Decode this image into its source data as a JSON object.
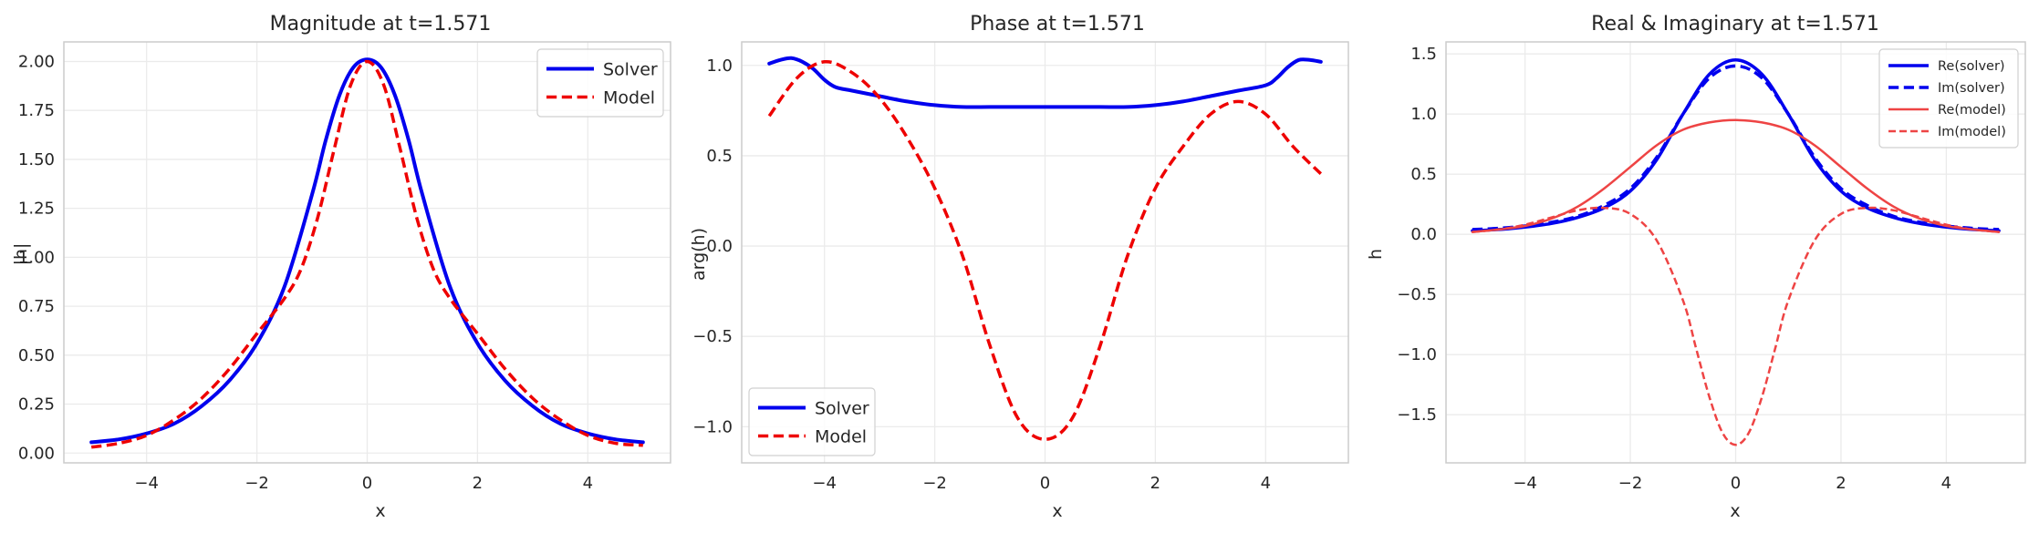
{
  "chart_data": [
    {
      "type": "line",
      "title": "Magnitude at t=1.571",
      "xlabel": "x",
      "ylabel": "|h|",
      "xlim": [
        -5.5,
        5.5
      ],
      "ylim": [
        -0.05,
        2.1
      ],
      "xticks": [
        -4,
        -2,
        0,
        2,
        4
      ],
      "xtick_labels": [
        "−4",
        "−2",
        "0",
        "2",
        "4"
      ],
      "yticks": [
        0.0,
        0.25,
        0.5,
        0.75,
        1.0,
        1.25,
        1.5,
        1.75,
        2.0
      ],
      "ytick_labels": [
        "0.00",
        "0.25",
        "0.50",
        "0.75",
        "1.00",
        "1.25",
        "1.50",
        "1.75",
        "2.00"
      ],
      "grid": true,
      "legend": "upper right",
      "series": [
        {
          "name": "Solver",
          "color": "#0000ee",
          "style": "solid",
          "width": 4,
          "x": [
            -5,
            -4.5,
            -4,
            -3.5,
            -3,
            -2.5,
            -2,
            -1.5,
            -1,
            -0.75,
            -0.5,
            -0.25,
            0,
            0.25,
            0.5,
            0.75,
            1,
            1.5,
            2,
            2.5,
            3,
            3.5,
            4,
            4.5,
            5
          ],
          "y": [
            0.055,
            0.07,
            0.1,
            0.15,
            0.24,
            0.37,
            0.56,
            0.85,
            1.32,
            1.6,
            1.83,
            1.97,
            2.01,
            1.97,
            1.83,
            1.6,
            1.32,
            0.85,
            0.56,
            0.37,
            0.24,
            0.15,
            0.1,
            0.07,
            0.055
          ]
        },
        {
          "name": "Model",
          "color": "#ee0000",
          "style": "dashed",
          "width": 3.5,
          "x": [
            -5,
            -4.5,
            -4,
            -3.5,
            -3,
            -2.5,
            -2,
            -1.5,
            -1.2,
            -0.9,
            -0.6,
            -0.3,
            0,
            0.3,
            0.6,
            0.9,
            1.2,
            1.5,
            2,
            2.5,
            3,
            3.5,
            4,
            4.5,
            5
          ],
          "y": [
            0.03,
            0.05,
            0.09,
            0.17,
            0.28,
            0.43,
            0.61,
            0.79,
            0.94,
            1.2,
            1.55,
            1.88,
            2.0,
            1.88,
            1.55,
            1.2,
            0.94,
            0.79,
            0.61,
            0.43,
            0.28,
            0.17,
            0.09,
            0.05,
            0.04
          ]
        }
      ]
    },
    {
      "type": "line",
      "title": "Phase at t=1.571",
      "xlabel": "x",
      "ylabel": "arg(h)",
      "xlim": [
        -5.5,
        5.5
      ],
      "ylim": [
        -1.2,
        1.13
      ],
      "xticks": [
        -4,
        -2,
        0,
        2,
        4
      ],
      "xtick_labels": [
        "−4",
        "−2",
        "0",
        "2",
        "4"
      ],
      "yticks": [
        -1.0,
        -0.5,
        0.0,
        0.5,
        1.0
      ],
      "ytick_labels": [
        "−1.0",
        "−0.5",
        "0.0",
        "0.5",
        "1.0"
      ],
      "grid": true,
      "legend": "lower left",
      "series": [
        {
          "name": "Solver",
          "color": "#0000ee",
          "style": "solid",
          "width": 4,
          "x": [
            -5,
            -4.8,
            -4.6,
            -4.4,
            -4.2,
            -4.0,
            -3.8,
            -3.5,
            -3.0,
            -2.5,
            -2.0,
            -1.5,
            -1.0,
            -0.5,
            0,
            0.5,
            1.0,
            1.5,
            2.0,
            2.5,
            3.0,
            3.5,
            4.0,
            4.2,
            4.4,
            4.6,
            4.8,
            5.0
          ],
          "y": [
            1.01,
            1.03,
            1.04,
            1.02,
            0.98,
            0.92,
            0.88,
            0.86,
            0.83,
            0.8,
            0.78,
            0.77,
            0.77,
            0.77,
            0.77,
            0.77,
            0.77,
            0.77,
            0.78,
            0.8,
            0.83,
            0.86,
            0.89,
            0.93,
            0.99,
            1.03,
            1.03,
            1.02
          ]
        },
        {
          "name": "Model",
          "color": "#ee0000",
          "style": "dashed",
          "width": 3.5,
          "x": [
            -5,
            -4.5,
            -4.0,
            -3.5,
            -3.0,
            -2.5,
            -2.0,
            -1.5,
            -1.0,
            -0.5,
            0,
            0.5,
            1.0,
            1.5,
            2.0,
            2.5,
            3.0,
            3.5,
            4.0,
            4.5,
            5.0
          ],
          "y": [
            0.72,
            0.93,
            1.02,
            0.96,
            0.82,
            0.6,
            0.32,
            -0.05,
            -0.55,
            -0.95,
            -1.07,
            -0.95,
            -0.55,
            -0.05,
            0.32,
            0.55,
            0.73,
            0.8,
            0.73,
            0.55,
            0.4
          ]
        }
      ]
    },
    {
      "type": "line",
      "title": "Real & Imaginary at t=1.571",
      "xlabel": "x",
      "ylabel": "h",
      "xlim": [
        -5.5,
        5.5
      ],
      "ylim": [
        -1.9,
        1.6
      ],
      "xticks": [
        -4,
        -2,
        0,
        2,
        4
      ],
      "xtick_labels": [
        "−4",
        "−2",
        "0",
        "2",
        "4"
      ],
      "yticks": [
        -1.5,
        -1.0,
        -0.5,
        0.0,
        0.5,
        1.0,
        1.5
      ],
      "ytick_labels": [
        "−1.5",
        "−1.0",
        "−0.5",
        "0.0",
        "0.5",
        "1.0",
        "1.5"
      ],
      "grid": true,
      "legend": "upper right",
      "series": [
        {
          "name": "Re(solver)",
          "color": "#0000ee",
          "style": "solid",
          "width": 3.5,
          "x": [
            -5,
            -4.5,
            -4,
            -3.5,
            -3,
            -2.5,
            -2,
            -1.5,
            -1,
            -0.5,
            0,
            0.5,
            1,
            1.5,
            2,
            2.5,
            3,
            3.5,
            4,
            4.5,
            5
          ],
          "y": [
            0.03,
            0.04,
            0.06,
            0.09,
            0.14,
            0.22,
            0.36,
            0.62,
            1.0,
            1.33,
            1.45,
            1.33,
            1.0,
            0.62,
            0.36,
            0.22,
            0.14,
            0.09,
            0.06,
            0.04,
            0.03
          ]
        },
        {
          "name": "Im(solver)",
          "color": "#0000ee",
          "style": "dashed",
          "width": 3.5,
          "x": [
            -5,
            -4.5,
            -4,
            -3.5,
            -3,
            -2.5,
            -2,
            -1.5,
            -1,
            -0.5,
            0,
            0.5,
            1,
            1.5,
            2,
            2.5,
            3,
            3.5,
            4,
            4.5,
            5
          ],
          "y": [
            0.04,
            0.05,
            0.07,
            0.1,
            0.15,
            0.24,
            0.38,
            0.64,
            1.0,
            1.3,
            1.4,
            1.3,
            1.0,
            0.64,
            0.38,
            0.24,
            0.15,
            0.1,
            0.07,
            0.05,
            0.04
          ]
        },
        {
          "name": "Re(model)",
          "color": "#ee4444",
          "style": "solid",
          "width": 2.5,
          "x": [
            -5,
            -4.5,
            -4,
            -3.5,
            -3,
            -2.5,
            -2,
            -1.5,
            -1,
            -0.5,
            0,
            0.5,
            1,
            1.5,
            2,
            2.5,
            3,
            3.5,
            4,
            4.5,
            5
          ],
          "y": [
            0.02,
            0.04,
            0.07,
            0.13,
            0.23,
            0.38,
            0.56,
            0.74,
            0.87,
            0.93,
            0.95,
            0.93,
            0.87,
            0.74,
            0.56,
            0.38,
            0.23,
            0.13,
            0.07,
            0.04,
            0.02
          ]
        },
        {
          "name": "Im(model)",
          "color": "#ee4444",
          "style": "dashed",
          "width": 2.5,
          "x": [
            -5,
            -4.5,
            -4,
            -3.5,
            -3,
            -2.5,
            -2,
            -1.5,
            -1,
            -0.75,
            -0.5,
            -0.25,
            0,
            0.25,
            0.5,
            0.75,
            1,
            1.5,
            2,
            2.5,
            3,
            3.5,
            4,
            4.5,
            5
          ],
          "y": [
            0.02,
            0.04,
            0.08,
            0.14,
            0.2,
            0.22,
            0.17,
            -0.05,
            -0.55,
            -0.95,
            -1.35,
            -1.65,
            -1.75,
            -1.65,
            -1.35,
            -0.95,
            -0.55,
            -0.05,
            0.17,
            0.22,
            0.2,
            0.14,
            0.08,
            0.04,
            0.02
          ]
        }
      ]
    }
  ]
}
